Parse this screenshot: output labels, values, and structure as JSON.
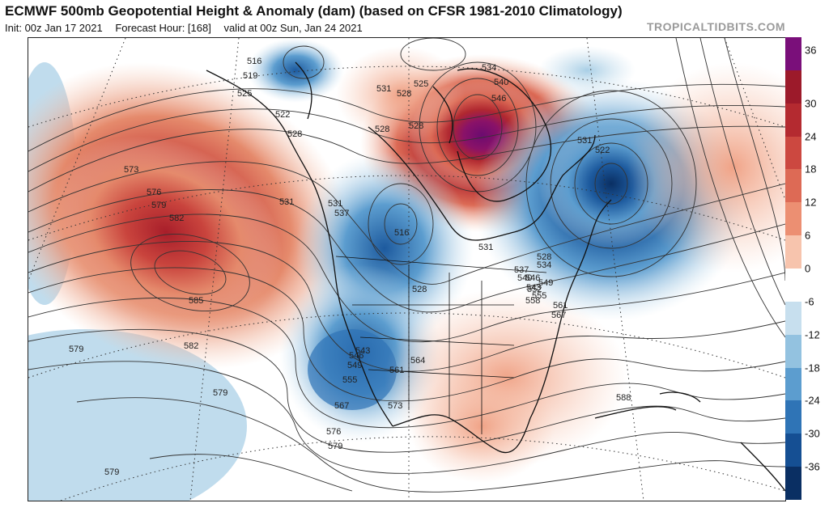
{
  "header": {
    "title": "ECMWF 500mb Geopotential Height & Anomaly (dam) (based on CFSR 1981-2010 Climatology)",
    "init": "Init: 00z Jan 17 2021",
    "forecast_hour": "Forecast Hour: [168]",
    "valid": "valid at 00z Sun, Jan 24 2021",
    "brand": "TROPICALTIDBITS.COM"
  },
  "colorbar": {
    "ticks": [
      "36",
      "30",
      "24",
      "18",
      "12",
      "6",
      "0",
      "-6",
      "-12",
      "-18",
      "-24",
      "-30",
      "-36"
    ],
    "colors": [
      "#7a0f7a",
      "#9c1a2a",
      "#b42a30",
      "#cc4840",
      "#dd6a55",
      "#ec8f72",
      "#f7c4ad",
      "#ffffff",
      "#c7dfee",
      "#93c2e0",
      "#5c9dcf",
      "#2f74b6",
      "#154f93",
      "#0a2f63"
    ]
  },
  "contour_labels": [
    {
      "text": "516"
    },
    {
      "text": "519"
    },
    {
      "text": "525"
    },
    {
      "text": "522"
    },
    {
      "text": "528"
    },
    {
      "text": "531"
    },
    {
      "text": "528"
    },
    {
      "text": "525"
    },
    {
      "text": "528"
    },
    {
      "text": "534"
    },
    {
      "text": "540"
    },
    {
      "text": "546"
    },
    {
      "text": "531"
    },
    {
      "text": "528"
    },
    {
      "text": "531"
    },
    {
      "text": "522"
    },
    {
      "text": "573"
    },
    {
      "text": "576"
    },
    {
      "text": "579"
    },
    {
      "text": "582"
    },
    {
      "text": "585"
    },
    {
      "text": "582"
    },
    {
      "text": "531"
    },
    {
      "text": "537"
    },
    {
      "text": "516"
    },
    {
      "text": "528"
    },
    {
      "text": "531"
    },
    {
      "text": "528"
    },
    {
      "text": "534"
    },
    {
      "text": "537"
    },
    {
      "text": "540"
    },
    {
      "text": "543"
    },
    {
      "text": "546"
    },
    {
      "text": "549"
    },
    {
      "text": "552"
    },
    {
      "text": "555"
    },
    {
      "text": "558"
    },
    {
      "text": "561"
    },
    {
      "text": "567"
    },
    {
      "text": "543"
    },
    {
      "text": "546"
    },
    {
      "text": "549"
    },
    {
      "text": "555"
    },
    {
      "text": "561"
    },
    {
      "text": "564"
    },
    {
      "text": "567"
    },
    {
      "text": "573"
    },
    {
      "text": "576"
    },
    {
      "text": "579"
    },
    {
      "text": "579"
    },
    {
      "text": "579"
    },
    {
      "text": "579"
    },
    {
      "text": "588"
    }
  ]
}
